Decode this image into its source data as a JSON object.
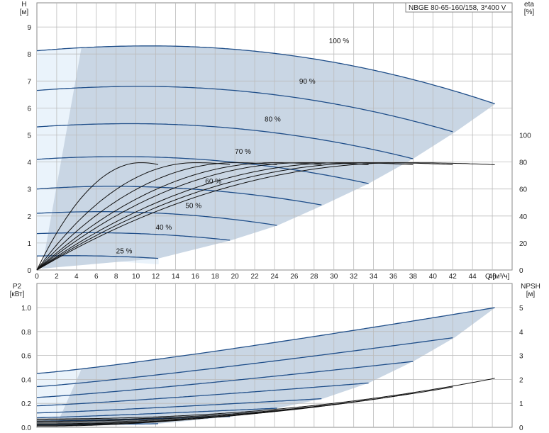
{
  "chart_data": [
    {
      "type": "line",
      "title": "NBGE 80-65-160/158, 3*400 V",
      "xlabel": "Q [м³/ч]",
      "ylabel_left": "H",
      "ylabel_left_unit": "[м]",
      "ylabel_right": "eta",
      "ylabel_right_unit": "[%]",
      "xlim": [
        0,
        48
      ],
      "ylim_left": [
        0,
        10
      ],
      "ylim_right": [
        0,
        100
      ],
      "x_ticks": [
        0,
        2,
        4,
        6,
        8,
        10,
        12,
        14,
        16,
        18,
        20,
        22,
        24,
        26,
        28,
        30,
        32,
        34,
        36,
        38,
        40,
        42,
        44,
        46
      ],
      "y_ticks_left": [
        0,
        1,
        2,
        3,
        4,
        5,
        6,
        7,
        8,
        9
      ],
      "y_ticks_right": [
        0,
        20,
        40,
        60,
        80,
        100
      ],
      "grid": true,
      "head_curves": [
        {
          "name": "100 %",
          "q_max": 46.3,
          "h0": 8.12,
          "h_peak": 8.3,
          "q_peak": 11.5,
          "h_end": 6.15,
          "label_q": 29.5,
          "label_h": 8.4
        },
        {
          "name": "90 %",
          "q_max": 42.2,
          "h0": 6.65,
          "h_peak": 6.8,
          "q_peak": 10.5,
          "h_end": 5.1,
          "label_q": 26.5,
          "label_h": 6.9
        },
        {
          "name": "80 %",
          "q_max": 38.0,
          "h0": 5.3,
          "h_peak": 5.42,
          "q_peak": 9.5,
          "h_end": 4.12,
          "label_q": 23,
          "label_h": 5.5
        },
        {
          "name": "70 %",
          "q_max": 33.5,
          "h0": 4.1,
          "h_peak": 4.2,
          "q_peak": 8.5,
          "h_end": 3.2,
          "label_q": 20,
          "label_h": 4.3
        },
        {
          "name": "60 %",
          "q_max": 28.9,
          "h0": 3.0,
          "h_peak": 3.1,
          "q_peak": 7.5,
          "h_end": 2.4,
          "label_q": 17,
          "label_h": 3.2
        },
        {
          "name": "50 %",
          "q_max": 24.3,
          "h0": 2.1,
          "h_peak": 2.16,
          "q_peak": 6.5,
          "h_end": 1.65,
          "label_q": 15,
          "label_h": 2.3
        },
        {
          "name": "40 %",
          "q_max": 19.6,
          "h0": 1.35,
          "h_peak": 1.38,
          "q_peak": 5.5,
          "h_end": 1.1,
          "label_q": 12,
          "label_h": 1.5
        },
        {
          "name": "25 %",
          "q_max": 12.3,
          "h0": 0.52,
          "h_peak": 0.53,
          "q_peak": 3.5,
          "h_end": 0.43,
          "label_q": 8,
          "label_h": 0.62
        }
      ],
      "efficiency_curves": [
        {
          "q_max": 12.3,
          "eta_max": 79.5,
          "q_peak": 10.5
        },
        {
          "q_max": 19.6,
          "eta_max": 79.5,
          "q_peak": 16
        },
        {
          "q_max": 24.3,
          "eta_max": 79.5,
          "q_peak": 20
        },
        {
          "q_max": 28.9,
          "eta_max": 79.5,
          "q_peak": 24
        },
        {
          "q_max": 33.5,
          "eta_max": 79.5,
          "q_peak": 27
        },
        {
          "q_max": 38.0,
          "eta_max": 79.5,
          "q_peak": 31
        },
        {
          "q_max": 42.2,
          "eta_max": 79.5,
          "q_peak": 34
        },
        {
          "q_max": 46.3,
          "eta_max": 79.5,
          "q_peak": 37
        }
      ]
    },
    {
      "type": "line",
      "ylabel_left": "P2",
      "ylabel_left_unit": "[кВт]",
      "ylabel_right": "NPSH",
      "ylabel_right_unit": "[м]",
      "xlim": [
        0,
        48
      ],
      "ylim_left": [
        0,
        1.0
      ],
      "ylim_right": [
        0,
        5
      ],
      "y_ticks_left": [
        "0.0",
        "0.2",
        "0.4",
        "0.6",
        "0.8",
        "1.0"
      ],
      "y_ticks_right": [
        0,
        1,
        2,
        3,
        4,
        5
      ],
      "grid": true,
      "power_curves": [
        {
          "q_max": 46.3,
          "p0": 0.45,
          "p_end": 1.0
        },
        {
          "q_max": 42.2,
          "p0": 0.34,
          "p_end": 0.75
        },
        {
          "q_max": 38.0,
          "p0": 0.25,
          "p_end": 0.55
        },
        {
          "q_max": 33.5,
          "p0": 0.18,
          "p_end": 0.37
        },
        {
          "q_max": 28.9,
          "p0": 0.12,
          "p_end": 0.24
        },
        {
          "q_max": 24.3,
          "p0": 0.08,
          "p_end": 0.16
        },
        {
          "q_max": 19.6,
          "p0": 0.05,
          "p_end": 0.09
        },
        {
          "q_max": 12.3,
          "p0": 0.02,
          "p_end": 0.03
        }
      ],
      "npsh_curves": [
        {
          "q_start": 0,
          "q_max": 46.3,
          "n0": 0.35,
          "n_end": 2.05
        },
        {
          "q_start": 0,
          "q_max": 42.2,
          "n0": 0.3,
          "n_end": 1.7
        },
        {
          "q_start": 0,
          "q_max": 38.0,
          "n0": 0.25,
          "n_end": 1.42
        },
        {
          "q_start": 0,
          "q_max": 33.5,
          "n0": 0.2,
          "n_end": 1.15
        },
        {
          "q_start": 0,
          "q_max": 28.9,
          "n0": 0.15,
          "n_end": 0.92
        },
        {
          "q_start": 0,
          "q_max": 24.3,
          "n0": 0.12,
          "n_end": 0.7
        },
        {
          "q_start": 0,
          "q_max": 19.6,
          "n0": 0.08,
          "n_end": 0.5
        },
        {
          "q_start": 0,
          "q_max": 12.3,
          "n0": 0.05,
          "n_end": 0.25
        }
      ]
    }
  ]
}
